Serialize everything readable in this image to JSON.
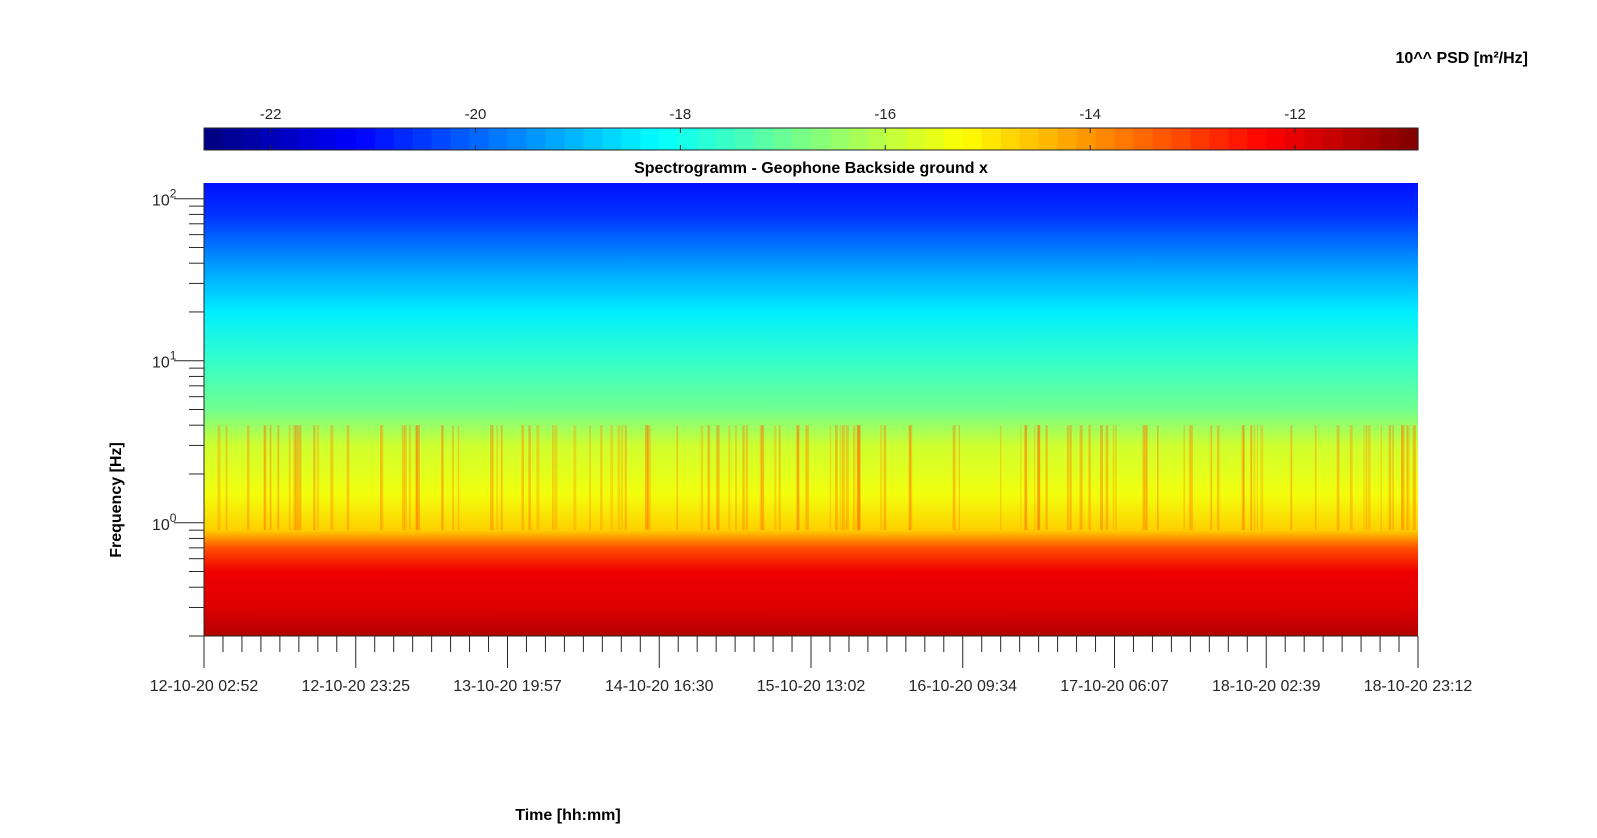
{
  "chart_data": {
    "type": "heatmap",
    "title": "Spectrogramm - Geophone Backside ground x",
    "xlabel": "Time [hh:mm]",
    "ylabel": "Frequency [Hz]",
    "colorbar": {
      "label": "10^^ PSD [m²/Hz]",
      "location": "top",
      "range": [
        -22.65,
        -10.8
      ],
      "ticks": [
        -22,
        -20,
        -18,
        -16,
        -14,
        -12
      ],
      "tick_labels": [
        "-22",
        "-20",
        "-18",
        "-16",
        "-14",
        "-12"
      ],
      "colormap": "jet"
    },
    "x": {
      "scale": "time",
      "range": [
        "12-10-20 02:52",
        "18-10-20 23:12"
      ],
      "tick_labels": [
        "12-10-20 02:52",
        "12-10-20 23:25",
        "13-10-20 19:57",
        "14-10-20 16:30",
        "15-10-20 13:02",
        "16-10-20 09:34",
        "17-10-20 06:07",
        "18-10-20 02:39",
        "18-10-20 23:12"
      ]
    },
    "y": {
      "scale": "log",
      "range": [
        0.2,
        125
      ],
      "ticks": [
        1,
        10,
        100
      ],
      "tick_labels": [
        {
          "base": "10",
          "exp": "0"
        },
        {
          "base": "10",
          "exp": "1"
        },
        {
          "base": "10",
          "exp": "2"
        }
      ]
    },
    "psd_profile": [
      {
        "freq": 0.2,
        "log10_psd": -11.4
      },
      {
        "freq": 0.3,
        "log10_psd": -11.9
      },
      {
        "freq": 0.5,
        "log10_psd": -12.1
      },
      {
        "freq": 0.7,
        "log10_psd": -13.2
      },
      {
        "freq": 0.9,
        "log10_psd": -14.7
      },
      {
        "freq": 1.5,
        "log10_psd": -15.4
      },
      {
        "freq": 3,
        "log10_psd": -15.8
      },
      {
        "freq": 5,
        "log10_psd": -16.9
      },
      {
        "freq": 10,
        "log10_psd": -17.6
      },
      {
        "freq": 20,
        "log10_psd": -18.4
      },
      {
        "freq": 40,
        "log10_psd": -19.4
      },
      {
        "freq": 80,
        "log10_psd": -20.6
      },
      {
        "freq": 125,
        "log10_psd": -21.0
      }
    ],
    "grid": false,
    "colors": {
      "axes": "#262626",
      "background": "#ffffff"
    }
  }
}
